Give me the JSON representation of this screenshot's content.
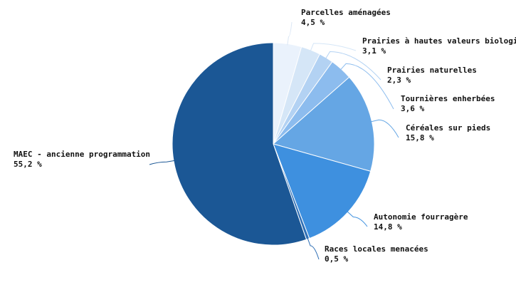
{
  "chart_data": {
    "type": "pie",
    "start": "top",
    "direction": "clockwise",
    "slices": [
      {
        "label": "Parcelles aménagées",
        "value": 4.5,
        "value_label": "4,5 %",
        "color": "#eaf2fc"
      },
      {
        "label": "Prairies à hautes valeurs biologi",
        "value": 3.1,
        "value_label": "3,1 %",
        "color": "#d5e6f7"
      },
      {
        "label": "Prairies naturelles",
        "value": 2.3,
        "value_label": "2,3 %",
        "color": "#b3d2f3"
      },
      {
        "label": "Tournières enherbées",
        "value": 3.6,
        "value_label": "3,6 %",
        "color": "#8cbcee"
      },
      {
        "label": "Céréales sur pieds",
        "value": 15.8,
        "value_label": "15,8 %",
        "color": "#65a6e4"
      },
      {
        "label": "Autonomie fourragère",
        "value": 14.8,
        "value_label": "14,8 %",
        "color": "#3e90df"
      },
      {
        "label": "Races locales menacées",
        "value": 0.5,
        "value_label": "0,5 %",
        "color": "#2f6fb5"
      },
      {
        "label": "MAEC - ancienne programmation",
        "value": 55.2,
        "value_label": "55,2 %",
        "color": "#1b5795"
      }
    ]
  }
}
